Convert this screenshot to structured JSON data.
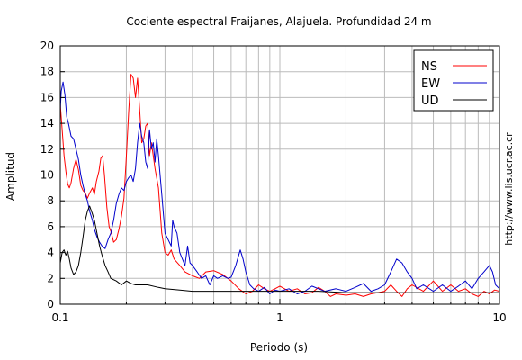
{
  "chart_data": {
    "type": "line",
    "title": "Cociente espectral Fraijanes, Alajuela. Profundidad 24 m",
    "xlabel": "Periodo (s)",
    "ylabel": "Amplitud",
    "xscale": "log",
    "xlim": [
      0.1,
      10
    ],
    "ylim": [
      0,
      20
    ],
    "grid": true,
    "legend_position": "top-right",
    "x_tick_labels": [
      "0.1",
      "1",
      "10"
    ],
    "y_tick_labels": [
      "0",
      "2",
      "4",
      "6",
      "8",
      "10",
      "12",
      "14",
      "16",
      "18",
      "20"
    ],
    "side_text": "http://www.lis.ucr.ac.cr",
    "series": [
      {
        "name": "NS",
        "color": "#ff0000",
        "points": [
          [
            0.1,
            15.5
          ],
          [
            0.102,
            13.5
          ],
          [
            0.104,
            11.5
          ],
          [
            0.106,
            10.3
          ],
          [
            0.108,
            9.3
          ],
          [
            0.11,
            9.0
          ],
          [
            0.112,
            9.4
          ],
          [
            0.115,
            10.5
          ],
          [
            0.118,
            11.2
          ],
          [
            0.121,
            10.4
          ],
          [
            0.124,
            9.2
          ],
          [
            0.127,
            8.8
          ],
          [
            0.13,
            8.6
          ],
          [
            0.133,
            8.2
          ],
          [
            0.136,
            8.6
          ],
          [
            0.14,
            9.0
          ],
          [
            0.143,
            8.5
          ],
          [
            0.146,
            9.5
          ],
          [
            0.15,
            10.3
          ],
          [
            0.153,
            11.3
          ],
          [
            0.156,
            11.5
          ],
          [
            0.159,
            10.0
          ],
          [
            0.163,
            7.5
          ],
          [
            0.167,
            6.0
          ],
          [
            0.171,
            5.5
          ],
          [
            0.175,
            4.8
          ],
          [
            0.18,
            5.0
          ],
          [
            0.185,
            5.8
          ],
          [
            0.19,
            6.8
          ],
          [
            0.195,
            8.2
          ],
          [
            0.2,
            11.5
          ],
          [
            0.205,
            15.0
          ],
          [
            0.21,
            17.8
          ],
          [
            0.215,
            17.5
          ],
          [
            0.22,
            16.0
          ],
          [
            0.225,
            17.5
          ],
          [
            0.23,
            15.0
          ],
          [
            0.235,
            12.5
          ],
          [
            0.24,
            12.8
          ],
          [
            0.245,
            13.8
          ],
          [
            0.25,
            14.0
          ],
          [
            0.255,
            11.5
          ],
          [
            0.26,
            12.5
          ],
          [
            0.27,
            10.5
          ],
          [
            0.28,
            9.0
          ],
          [
            0.29,
            5.5
          ],
          [
            0.3,
            4.0
          ],
          [
            0.31,
            3.8
          ],
          [
            0.32,
            4.2
          ],
          [
            0.33,
            3.5
          ],
          [
            0.35,
            3.0
          ],
          [
            0.37,
            2.5
          ],
          [
            0.4,
            2.2
          ],
          [
            0.43,
            2.0
          ],
          [
            0.46,
            2.5
          ],
          [
            0.5,
            2.6
          ],
          [
            0.55,
            2.3
          ],
          [
            0.6,
            1.8
          ],
          [
            0.65,
            1.2
          ],
          [
            0.7,
            0.8
          ],
          [
            0.75,
            1.0
          ],
          [
            0.8,
            1.5
          ],
          [
            0.85,
            1.2
          ],
          [
            0.9,
            1.0
          ],
          [
            0.95,
            1.2
          ],
          [
            1.0,
            1.4
          ],
          [
            1.1,
            1.0
          ],
          [
            1.2,
            1.2
          ],
          [
            1.3,
            0.8
          ],
          [
            1.4,
            0.9
          ],
          [
            1.5,
            1.3
          ],
          [
            1.6,
            1.0
          ],
          [
            1.7,
            0.6
          ],
          [
            1.8,
            0.8
          ],
          [
            2.0,
            0.7
          ],
          [
            2.2,
            0.8
          ],
          [
            2.4,
            0.6
          ],
          [
            2.6,
            0.8
          ],
          [
            2.8,
            0.9
          ],
          [
            3.0,
            1.0
          ],
          [
            3.2,
            1.5
          ],
          [
            3.4,
            1.0
          ],
          [
            3.6,
            0.6
          ],
          [
            3.8,
            1.2
          ],
          [
            4.0,
            1.5
          ],
          [
            4.5,
            1.0
          ],
          [
            5.0,
            1.8
          ],
          [
            5.5,
            1.0
          ],
          [
            6.0,
            1.5
          ],
          [
            6.5,
            1.0
          ],
          [
            7.0,
            1.2
          ],
          [
            7.5,
            0.8
          ],
          [
            8.0,
            0.6
          ],
          [
            8.5,
            1.0
          ],
          [
            9.0,
            0.8
          ],
          [
            9.5,
            1.1
          ],
          [
            10.0,
            1.0
          ]
        ]
      },
      {
        "name": "EW",
        "color": "#0000cc",
        "points": [
          [
            0.1,
            15.0
          ],
          [
            0.101,
            16.5
          ],
          [
            0.103,
            17.2
          ],
          [
            0.105,
            16.2
          ],
          [
            0.107,
            14.5
          ],
          [
            0.109,
            14.0
          ],
          [
            0.112,
            13.0
          ],
          [
            0.115,
            12.8
          ],
          [
            0.118,
            12.0
          ],
          [
            0.121,
            11.2
          ],
          [
            0.124,
            10.0
          ],
          [
            0.127,
            9.2
          ],
          [
            0.13,
            8.5
          ],
          [
            0.133,
            8.0
          ],
          [
            0.136,
            7.2
          ],
          [
            0.14,
            6.5
          ],
          [
            0.143,
            5.8
          ],
          [
            0.147,
            5.2
          ],
          [
            0.151,
            4.8
          ],
          [
            0.155,
            4.5
          ],
          [
            0.16,
            4.3
          ],
          [
            0.165,
            5.0
          ],
          [
            0.17,
            5.5
          ],
          [
            0.175,
            6.5
          ],
          [
            0.18,
            7.8
          ],
          [
            0.185,
            8.5
          ],
          [
            0.19,
            9.0
          ],
          [
            0.195,
            8.8
          ],
          [
            0.2,
            9.5
          ],
          [
            0.205,
            9.8
          ],
          [
            0.21,
            10.0
          ],
          [
            0.215,
            9.5
          ],
          [
            0.22,
            10.5
          ],
          [
            0.225,
            12.5
          ],
          [
            0.23,
            14.0
          ],
          [
            0.235,
            13.0
          ],
          [
            0.24,
            12.5
          ],
          [
            0.245,
            11.0
          ],
          [
            0.25,
            10.5
          ],
          [
            0.255,
            13.5
          ],
          [
            0.26,
            12.0
          ],
          [
            0.265,
            12.5
          ],
          [
            0.27,
            11.0
          ],
          [
            0.275,
            12.8
          ],
          [
            0.28,
            11.5
          ],
          [
            0.29,
            8.5
          ],
          [
            0.3,
            5.5
          ],
          [
            0.31,
            5.0
          ],
          [
            0.32,
            4.5
          ],
          [
            0.325,
            6.5
          ],
          [
            0.33,
            6.0
          ],
          [
            0.34,
            5.5
          ],
          [
            0.35,
            4.0
          ],
          [
            0.36,
            3.5
          ],
          [
            0.37,
            3.0
          ],
          [
            0.38,
            4.5
          ],
          [
            0.39,
            3.2
          ],
          [
            0.4,
            3.0
          ],
          [
            0.42,
            2.5
          ],
          [
            0.44,
            2.0
          ],
          [
            0.46,
            2.2
          ],
          [
            0.48,
            1.5
          ],
          [
            0.5,
            2.2
          ],
          [
            0.52,
            2.0
          ],
          [
            0.55,
            2.2
          ],
          [
            0.58,
            2.0
          ],
          [
            0.6,
            2.1
          ],
          [
            0.63,
            3.0
          ],
          [
            0.66,
            4.2
          ],
          [
            0.68,
            3.5
          ],
          [
            0.7,
            2.5
          ],
          [
            0.73,
            1.5
          ],
          [
            0.76,
            1.2
          ],
          [
            0.8,
            1.0
          ],
          [
            0.85,
            1.3
          ],
          [
            0.9,
            0.8
          ],
          [
            0.95,
            1.1
          ],
          [
            1.0,
            1.0
          ],
          [
            1.1,
            1.2
          ],
          [
            1.2,
            0.8
          ],
          [
            1.3,
            1.0
          ],
          [
            1.4,
            1.4
          ],
          [
            1.5,
            1.2
          ],
          [
            1.6,
            1.0
          ],
          [
            1.8,
            1.2
          ],
          [
            2.0,
            1.0
          ],
          [
            2.2,
            1.3
          ],
          [
            2.4,
            1.6
          ],
          [
            2.6,
            1.0
          ],
          [
            2.8,
            1.2
          ],
          [
            3.0,
            1.5
          ],
          [
            3.2,
            2.5
          ],
          [
            3.4,
            3.5
          ],
          [
            3.6,
            3.2
          ],
          [
            3.8,
            2.5
          ],
          [
            4.0,
            2.0
          ],
          [
            4.2,
            1.2
          ],
          [
            4.5,
            1.5
          ],
          [
            5.0,
            1.0
          ],
          [
            5.5,
            1.5
          ],
          [
            6.0,
            1.0
          ],
          [
            6.5,
            1.4
          ],
          [
            7.0,
            1.8
          ],
          [
            7.5,
            1.2
          ],
          [
            8.0,
            2.0
          ],
          [
            8.5,
            2.5
          ],
          [
            9.0,
            3.0
          ],
          [
            9.3,
            2.5
          ],
          [
            9.6,
            1.5
          ],
          [
            10.0,
            1.2
          ]
        ]
      },
      {
        "name": "UD",
        "color": "#000000",
        "points": [
          [
            0.1,
            3.2
          ],
          [
            0.102,
            4.0
          ],
          [
            0.104,
            4.2
          ],
          [
            0.106,
            3.8
          ],
          [
            0.108,
            4.1
          ],
          [
            0.11,
            3.5
          ],
          [
            0.112,
            2.8
          ],
          [
            0.115,
            2.3
          ],
          [
            0.118,
            2.5
          ],
          [
            0.121,
            3.0
          ],
          [
            0.124,
            4.0
          ],
          [
            0.127,
            5.2
          ],
          [
            0.13,
            6.5
          ],
          [
            0.133,
            7.2
          ],
          [
            0.136,
            7.6
          ],
          [
            0.14,
            7.0
          ],
          [
            0.143,
            6.5
          ],
          [
            0.147,
            5.5
          ],
          [
            0.151,
            4.5
          ],
          [
            0.155,
            3.8
          ],
          [
            0.16,
            3.0
          ],
          [
            0.165,
            2.5
          ],
          [
            0.17,
            2.0
          ],
          [
            0.18,
            1.8
          ],
          [
            0.19,
            1.5
          ],
          [
            0.2,
            1.8
          ],
          [
            0.21,
            1.6
          ],
          [
            0.22,
            1.5
          ],
          [
            0.25,
            1.5
          ],
          [
            0.28,
            1.3
          ],
          [
            0.3,
            1.2
          ],
          [
            0.35,
            1.1
          ],
          [
            0.4,
            1.0
          ],
          [
            0.5,
            1.0
          ],
          [
            0.6,
            1.0
          ],
          [
            0.8,
            1.0
          ],
          [
            1.0,
            1.0
          ],
          [
            1.5,
            1.0
          ],
          [
            2.0,
            0.9
          ],
          [
            3.0,
            0.9
          ],
          [
            4.0,
            0.9
          ],
          [
            5.0,
            0.9
          ],
          [
            6.0,
            0.9
          ],
          [
            7.0,
            0.9
          ],
          [
            8.0,
            0.9
          ],
          [
            9.0,
            0.9
          ],
          [
            10.0,
            0.9
          ]
        ]
      }
    ]
  }
}
